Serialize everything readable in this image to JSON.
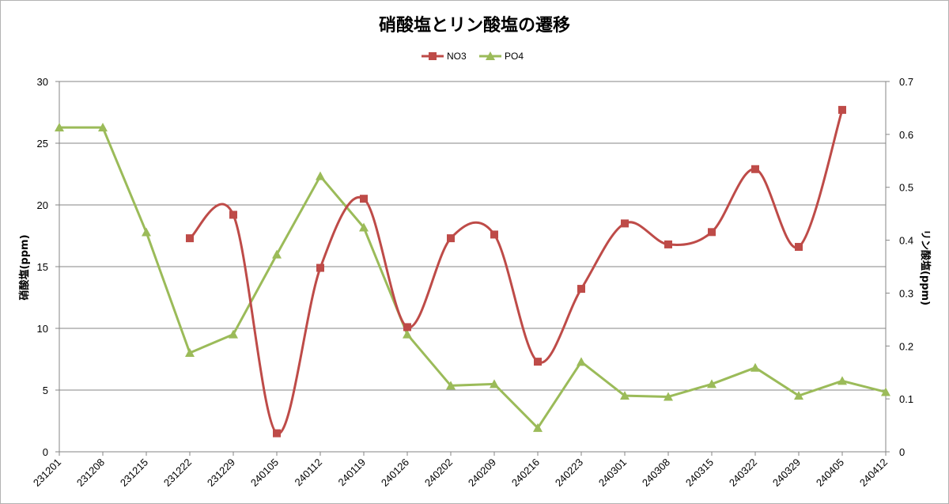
{
  "chart_data": {
    "type": "line",
    "title": "硝酸塩とリン酸塩の遷移",
    "legend": "top-center",
    "grid": true,
    "categories": [
      "231201",
      "231208",
      "231215",
      "231222",
      "231229",
      "240105",
      "240112",
      "240119",
      "240126",
      "240202",
      "240209",
      "240216",
      "240223",
      "240301",
      "240308",
      "240315",
      "240322",
      "240329",
      "240405",
      "240412"
    ],
    "y_left": {
      "label": "硝酸塩(ppm)",
      "range": [
        0,
        30
      ],
      "ticks": [
        "0",
        "5",
        "10",
        "15",
        "20",
        "25",
        "30"
      ]
    },
    "y_right": {
      "label": "リン酸塩(ppm)",
      "range": [
        0,
        0.7
      ],
      "ticks": [
        "0",
        "0.1",
        "0.2",
        "0.3",
        "0.4",
        "0.5",
        "0.6",
        "0.7"
      ]
    },
    "series": [
      {
        "name": "NO3",
        "axis": "left",
        "color": "#be4b48",
        "marker": "square",
        "smooth": true,
        "values": [
          null,
          null,
          null,
          17.3,
          19.2,
          1.5,
          14.9,
          20.5,
          10.1,
          17.3,
          17.6,
          7.3,
          13.2,
          18.5,
          16.8,
          17.8,
          22.9,
          16.6,
          27.7,
          null
        ]
      },
      {
        "name": "PO4",
        "axis": "right",
        "color": "#9bbb59",
        "marker": "triangle",
        "smooth": false,
        "values": [
          0.613,
          0.613,
          0.415,
          0.187,
          0.222,
          0.373,
          0.521,
          0.424,
          0.222,
          0.125,
          0.128,
          0.045,
          0.17,
          0.106,
          0.104,
          0.128,
          0.159,
          0.106,
          0.134,
          0.113
        ]
      }
    ]
  }
}
